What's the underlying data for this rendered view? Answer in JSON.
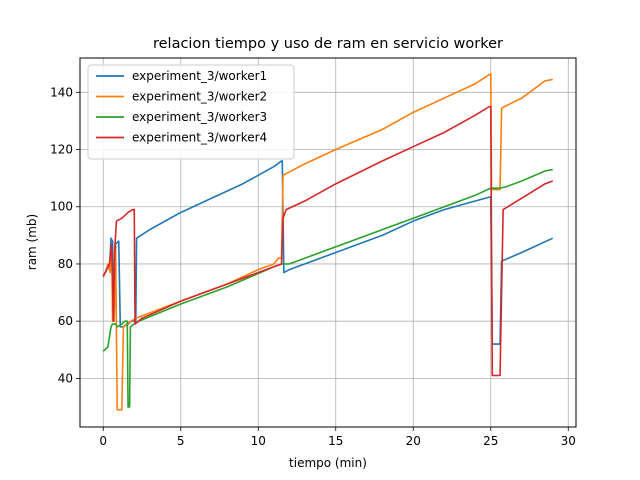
{
  "chart_data": {
    "type": "line",
    "title": "relacion tiempo y uso de ram en servicio worker",
    "xlabel": "tiempo (min)",
    "ylabel": "ram (mb)",
    "xlim": [
      -1.5,
      30.5
    ],
    "ylim": [
      23,
      152
    ],
    "x_ticks": [
      0,
      5,
      10,
      15,
      20,
      25,
      30
    ],
    "y_ticks": [
      40,
      60,
      80,
      100,
      120,
      140
    ],
    "grid": true,
    "legend_position": "top-left",
    "series": [
      {
        "name": "experiment_3/worker1",
        "color": "#1f77b4",
        "points": [
          [
            0,
            76
          ],
          [
            0.15,
            77
          ],
          [
            0.3,
            79
          ],
          [
            0.4,
            78
          ],
          [
            0.5,
            89
          ],
          [
            0.6,
            88
          ],
          [
            0.7,
            60
          ],
          [
            0.8,
            87
          ],
          [
            1.0,
            88
          ],
          [
            1.1,
            58
          ],
          [
            1.3,
            58
          ],
          [
            1.6,
            59
          ],
          [
            1.8,
            60
          ],
          [
            2.0,
            60
          ],
          [
            2.1,
            60
          ],
          [
            2.15,
            89
          ],
          [
            3,
            92
          ],
          [
            5,
            98
          ],
          [
            7,
            103
          ],
          [
            9,
            108
          ],
          [
            11,
            114
          ],
          [
            11.5,
            116
          ],
          [
            11.55,
            116
          ],
          [
            11.65,
            77
          ],
          [
            12,
            78
          ],
          [
            15,
            84
          ],
          [
            18,
            90
          ],
          [
            20,
            95
          ],
          [
            22,
            99
          ],
          [
            24,
            102
          ],
          [
            25,
            103.5
          ],
          [
            25.1,
            52
          ],
          [
            25.6,
            52
          ],
          [
            25.7,
            81
          ],
          [
            27,
            84
          ],
          [
            29,
            89
          ]
        ]
      },
      {
        "name": "experiment_3/worker2",
        "color": "#ff7f0e",
        "points": [
          [
            0,
            76
          ],
          [
            0.15,
            77
          ],
          [
            0.3,
            80
          ],
          [
            0.45,
            77
          ],
          [
            0.55,
            86
          ],
          [
            0.6,
            60
          ],
          [
            0.7,
            60
          ],
          [
            0.8,
            85
          ],
          [
            0.9,
            29
          ],
          [
            1.2,
            29
          ],
          [
            1.3,
            58
          ],
          [
            1.5,
            59
          ],
          [
            1.8,
            60
          ],
          [
            2.1,
            61
          ],
          [
            5,
            67
          ],
          [
            8,
            73
          ],
          [
            10,
            78
          ],
          [
            11,
            80
          ],
          [
            11.3,
            82
          ],
          [
            11.5,
            82
          ],
          [
            11.6,
            111
          ],
          [
            13,
            115
          ],
          [
            15,
            120
          ],
          [
            18,
            127
          ],
          [
            20,
            133
          ],
          [
            22,
            138
          ],
          [
            24,
            143
          ],
          [
            25,
            146.5
          ],
          [
            25.05,
            106
          ],
          [
            25.6,
            106
          ],
          [
            25.7,
            134.5
          ],
          [
            27,
            138
          ],
          [
            28.5,
            144
          ],
          [
            29,
            144.5
          ]
        ]
      },
      {
        "name": "experiment_3/worker3",
        "color": "#2ca02c",
        "points": [
          [
            0,
            49.5
          ],
          [
            0.1,
            50
          ],
          [
            0.3,
            51
          ],
          [
            0.5,
            58
          ],
          [
            0.6,
            59
          ],
          [
            0.8,
            59
          ],
          [
            0.9,
            58
          ],
          [
            1.2,
            59
          ],
          [
            1.4,
            60
          ],
          [
            1.55,
            60
          ],
          [
            1.6,
            30
          ],
          [
            1.7,
            30
          ],
          [
            1.75,
            58
          ],
          [
            2,
            59
          ],
          [
            2.3,
            60
          ],
          [
            5,
            66
          ],
          [
            8,
            72
          ],
          [
            11,
            79
          ],
          [
            11.5,
            80
          ],
          [
            12,
            80
          ],
          [
            14,
            84
          ],
          [
            16,
            88
          ],
          [
            18,
            92
          ],
          [
            20,
            96
          ],
          [
            22,
            100
          ],
          [
            24,
            104
          ],
          [
            25,
            106.5
          ],
          [
            25.6,
            106.5
          ],
          [
            26,
            107
          ],
          [
            27,
            109
          ],
          [
            28.5,
            112.5
          ],
          [
            29,
            113
          ]
        ]
      },
      {
        "name": "experiment_3/worker4",
        "color": "#d62728",
        "points": [
          [
            0,
            75.5
          ],
          [
            0.2,
            78
          ],
          [
            0.4,
            80
          ],
          [
            0.55,
            87
          ],
          [
            0.65,
            60
          ],
          [
            0.75,
            86
          ],
          [
            0.85,
            95
          ],
          [
            1.2,
            96
          ],
          [
            1.6,
            98
          ],
          [
            1.9,
            99
          ],
          [
            2.0,
            99
          ],
          [
            2.05,
            59
          ],
          [
            2.5,
            61
          ],
          [
            5,
            67
          ],
          [
            8,
            73
          ],
          [
            11,
            79
          ],
          [
            11.5,
            80
          ],
          [
            11.6,
            96
          ],
          [
            11.8,
            99
          ],
          [
            13,
            102
          ],
          [
            15,
            108
          ],
          [
            18,
            116
          ],
          [
            20,
            121
          ],
          [
            22,
            126
          ],
          [
            24,
            132
          ],
          [
            24.9,
            135
          ],
          [
            25.0,
            135
          ],
          [
            25.1,
            41
          ],
          [
            25.6,
            41
          ],
          [
            25.8,
            99
          ],
          [
            27,
            103
          ],
          [
            28.5,
            108
          ],
          [
            29,
            109
          ]
        ]
      }
    ]
  }
}
